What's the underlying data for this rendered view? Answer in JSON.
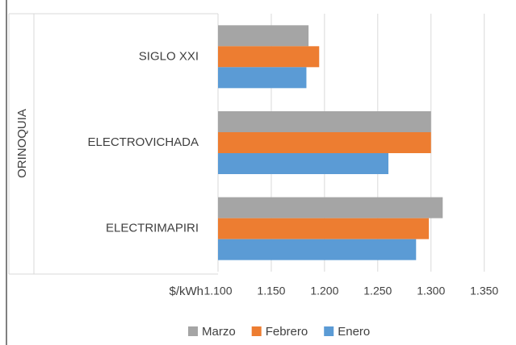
{
  "chart_data": {
    "type": "bar",
    "orientation": "horizontal",
    "group_label": "ORINOQUIA",
    "x_axis_label": "$/kWh",
    "categories": [
      "SIGLO XXI",
      "ELECTROVICHADA",
      "ELECTRIMAPIRI"
    ],
    "series": [
      {
        "name": "Marzo",
        "color": "#a5a5a5",
        "values": [
          1.185,
          1.3,
          1.311
        ]
      },
      {
        "name": "Febrero",
        "color": "#ed7d31",
        "values": [
          1.195,
          1.3,
          1.298
        ]
      },
      {
        "name": "Enero",
        "color": "#5b9bd5",
        "values": [
          1.183,
          1.26,
          1.286
        ]
      }
    ],
    "xlim": [
      1.1,
      1.373
    ],
    "xticks": [
      {
        "value": 1.1,
        "label": "1.100"
      },
      {
        "value": 1.15,
        "label": "1.150"
      },
      {
        "value": 1.2,
        "label": "1.200"
      },
      {
        "value": 1.25,
        "label": "1.250"
      },
      {
        "value": 1.3,
        "label": "1.300"
      },
      {
        "value": 1.35,
        "label": "1.350"
      }
    ],
    "grid": true,
    "legend": "bottom"
  }
}
